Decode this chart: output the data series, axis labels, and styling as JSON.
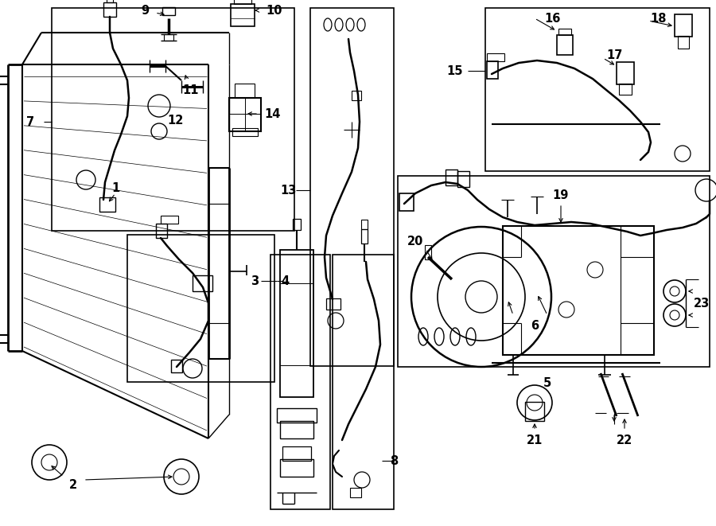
{
  "bg_color": "#ffffff",
  "lc": "#000000",
  "fig_w": 9.0,
  "fig_h": 6.61,
  "dpi": 100
}
